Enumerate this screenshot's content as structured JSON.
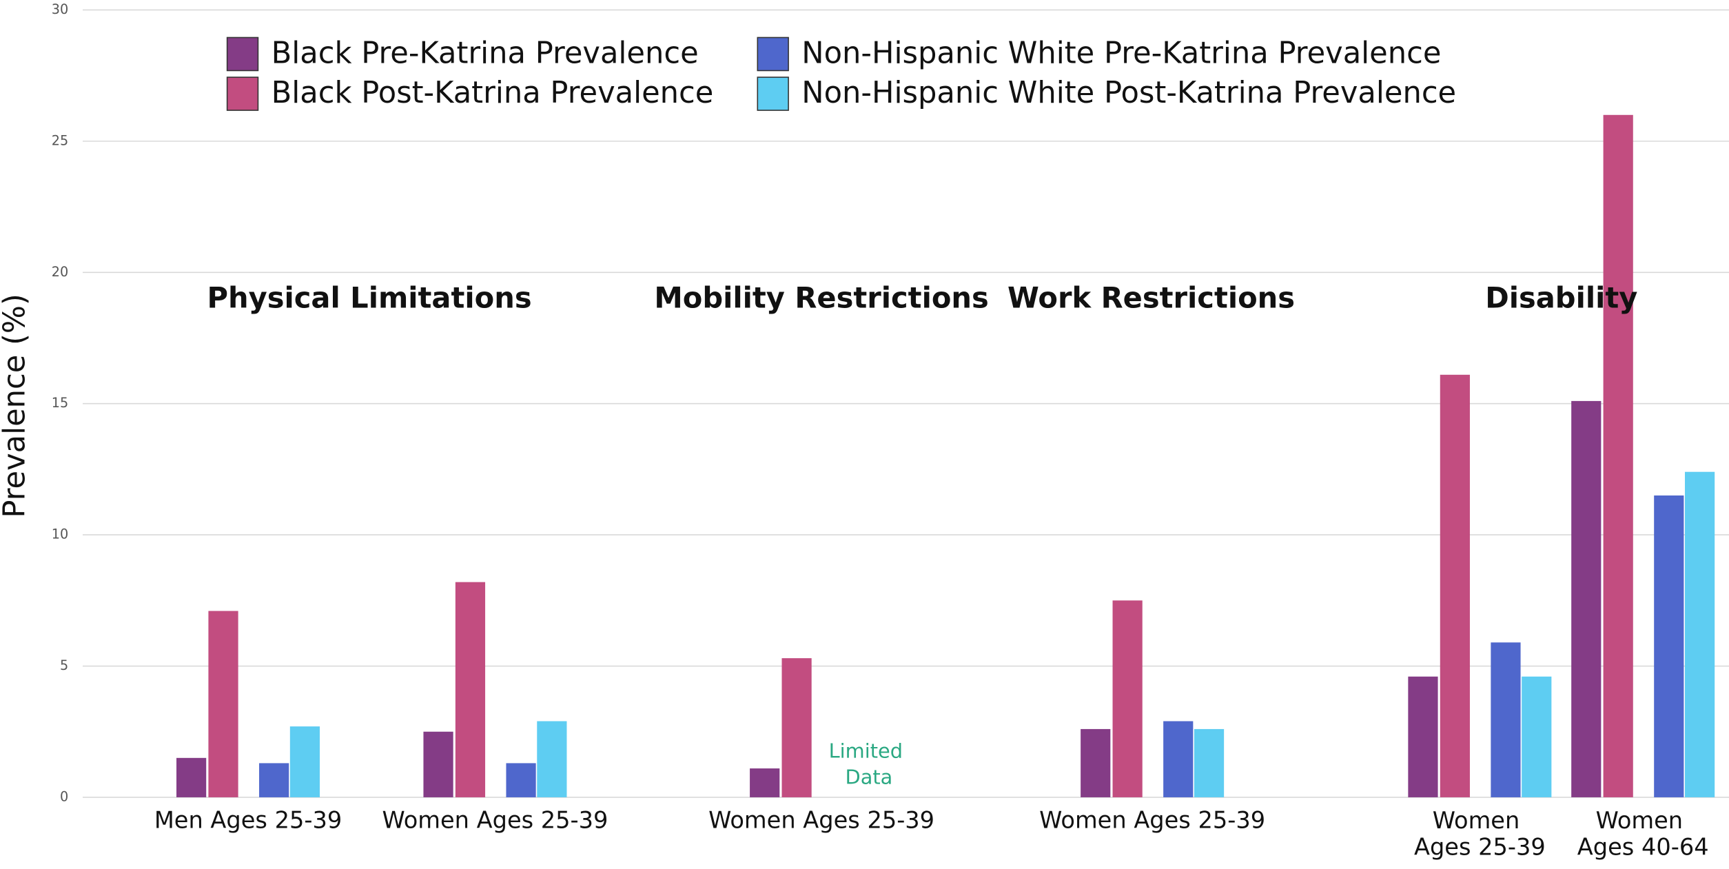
{
  "chart_data": {
    "type": "bar",
    "y_label": "Prevalence (%)",
    "sections": [
      "Physical Limitations",
      "Mobility Restrictions",
      "Work Restrictions",
      "Disability"
    ],
    "categories": [
      "Men Ages 25-39",
      "Women Ages 25-39",
      "Women Ages 25-39",
      "Women Ages 25-39",
      "Women Ages 25-39",
      "Women Ages 40-64"
    ],
    "series": [
      {
        "name": "Black Pre-Katrina Prevalence",
        "color": "#843c86",
        "values": [
          1.5,
          2.5,
          1.1,
          2.6,
          4.6,
          15.1
        ]
      },
      {
        "name": "Black Post-Katrina Prevalence",
        "color": "#c24d80",
        "values": [
          7.1,
          8.2,
          5.3,
          7.5,
          16.1,
          26.0
        ]
      },
      {
        "name": "Non-Hispanic White Pre-Katrina Prevalence",
        "color": "#4f67cc",
        "values": [
          1.3,
          1.3,
          null,
          2.9,
          5.9,
          11.5
        ]
      },
      {
        "name": "Non-Hispanic White Post-Katrina Prevalence",
        "color": "#5ecdf2",
        "values": [
          2.7,
          2.9,
          null,
          2.6,
          4.6,
          12.4
        ]
      }
    ],
    "annotation": "Limited Data",
    "ylim": [
      0,
      30
    ],
    "yticks": [
      0,
      5,
      10,
      15,
      20,
      25,
      30
    ],
    "grid": true
  }
}
